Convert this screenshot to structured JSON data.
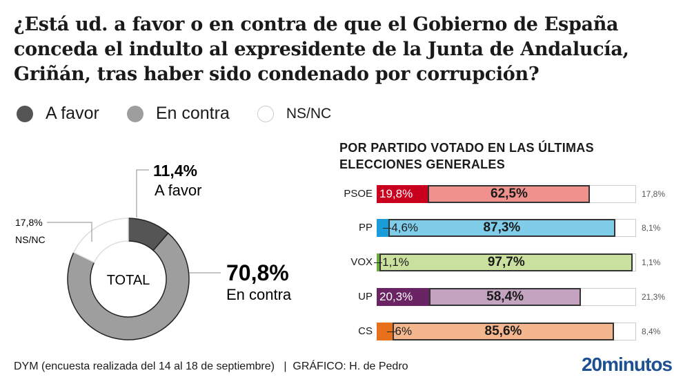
{
  "title": "¿Está ud. a favor o en contra de que el Gobierno de España conceda el indulto al expresidente de la Junta de Andalucía, Griñán, tras haber sido condenado por corrupción?",
  "legend": [
    {
      "label": "A favor",
      "color": "#555555"
    },
    {
      "label": "En contra",
      "color": "#9e9e9e"
    },
    {
      "label": "NS/NC",
      "color": "#ffffff"
    }
  ],
  "footer": {
    "source": "DYM (encuesta realizada del 14 al 18 de septiembre)",
    "separator": "|",
    "credit": "GRÁFICO: H. de Pedro",
    "logo": "20minutos"
  },
  "chart_data": [
    {
      "type": "pie",
      "title": "TOTAL",
      "slices": [
        {
          "name": "A favor",
          "value": 11.4,
          "label": "11,4%",
          "color": "#555555"
        },
        {
          "name": "En contra",
          "value": 70.8,
          "label": "70,8%",
          "color": "#9e9e9e"
        },
        {
          "name": "NS/NC",
          "value": 17.8,
          "label": "17,8%",
          "color": "#ffffff"
        }
      ]
    },
    {
      "type": "bar",
      "stacked": true,
      "title": "POR PARTIDO VOTADO EN LAS ÚLTIMAS ELECCIONES GENERALES",
      "categories": [
        "PSOE",
        "PP",
        "VOX",
        "UP",
        "CS"
      ],
      "series": [
        {
          "name": "A favor",
          "values": [
            19.8,
            4.6,
            1.1,
            20.3,
            6
          ],
          "labels": [
            "19,8%",
            "4,6%",
            "1,1%",
            "20,3%",
            "6%"
          ]
        },
        {
          "name": "En contra",
          "values": [
            62.5,
            87.3,
            97.7,
            58.4,
            85.6
          ],
          "labels": [
            "62,5%",
            "87,3%",
            "97,7%",
            "58,4%",
            "85,6%"
          ]
        },
        {
          "name": "NS/NC",
          "values": [
            17.8,
            8.1,
            1.1,
            21.3,
            8.4
          ],
          "labels": [
            "17,8%",
            "8,1%",
            "1,1%",
            "21,3%",
            "8,4%"
          ]
        }
      ],
      "colors": [
        [
          "#c8001e",
          "#f0918d"
        ],
        [
          "#1a9cd8",
          "#80cdea"
        ],
        [
          "#6fae3a",
          "#c9e09e"
        ],
        [
          "#6b2463",
          "#c3a3c0"
        ],
        [
          "#e8701c",
          "#f3b68e"
        ]
      ]
    }
  ]
}
